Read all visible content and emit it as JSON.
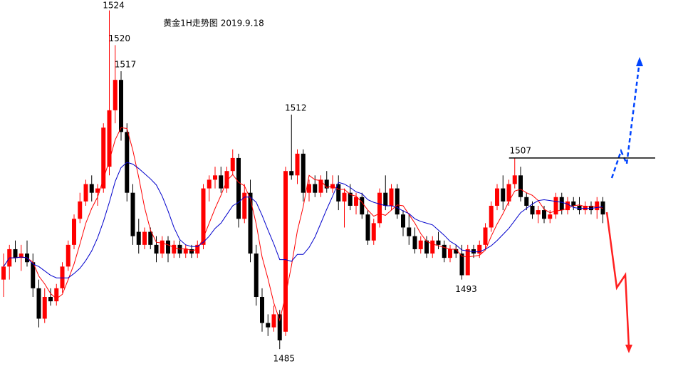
{
  "chart_data": {
    "type": "candlestick",
    "title": "黄金1H走势图 2019.9.18",
    "ylim": [
      1482.8,
      1525.2
    ],
    "up_color": "#ff0000",
    "down_color": "#000000",
    "open": [
      1493,
      1494.5,
      1496.5,
      1495.5,
      1496,
      1495,
      1492,
      1488.5,
      1491,
      1490.5,
      1492,
      1494.5,
      1497,
      1500,
      1502,
      1504,
      1503,
      1503.5,
      1506,
      1512.5,
      1516,
      1510,
      1503,
      1498.5,
      1497,
      1498.5,
      1497,
      1496,
      1497.5,
      1496,
      1497,
      1496,
      1496.5,
      1496,
      1497,
      1503.5,
      1504.5,
      1505,
      1503.5,
      1505.5,
      1507,
      1500,
      1503,
      1496,
      1491,
      1488,
      1487.5,
      1489,
      1487,
      1505.5,
      1505,
      1507.5,
      1503,
      1504,
      1503,
      1504.5,
      1503.5,
      1504,
      1502,
      1503,
      1501.5,
      1502.5,
      1500.5,
      1497.5,
      1499.5,
      1503,
      1501.5,
      1503.5,
      1500.5,
      1499,
      1498,
      1496.5,
      1497.5,
      1496,
      1497.5,
      1497,
      1495.5,
      1496.5,
      1496,
      1493.5,
      1496.5,
      1496,
      1497,
      1499,
      1501.5,
      1503.5,
      1502,
      1504,
      1505,
      1502.5,
      1501.5,
      1500.5,
      1501,
      1500,
      1500.5,
      1502.5,
      1501,
      1502,
      1501.5,
      1501,
      1501.5,
      1501,
      1502
    ],
    "high": [
      1496,
      1497,
      1497.5,
      1497,
      1497.5,
      1496,
      1493,
      1492,
      1492,
      1492.5,
      1495,
      1497.5,
      1500.5,
      1503,
      1504.5,
      1505,
      1504,
      1511,
      1524,
      1520,
      1517,
      1511,
      1504,
      1500,
      1499,
      1499,
      1498,
      1498,
      1498,
      1497.5,
      1497.5,
      1497,
      1497,
      1497.5,
      1504,
      1505,
      1506,
      1506,
      1506,
      1508,
      1507.5,
      1504,
      1504.5,
      1497,
      1492,
      1489,
      1490,
      1489.5,
      1506,
      1512,
      1508,
      1508,
      1504.5,
      1505,
      1505,
      1505.5,
      1505,
      1505,
      1503.5,
      1504,
      1503,
      1503,
      1501,
      1500,
      1503.5,
      1505,
      1504,
      1504,
      1501,
      1500.5,
      1499,
      1498,
      1498,
      1498,
      1498.5,
      1497.5,
      1497,
      1497,
      1497,
      1497,
      1497,
      1497.5,
      1499.5,
      1502,
      1504,
      1505,
      1504.5,
      1507,
      1506,
      1503,
      1502,
      1501.5,
      1501.5,
      1501,
      1503,
      1503,
      1502.5,
      1502.5,
      1502.5,
      1502,
      1502,
      1502.5,
      1502.5
    ],
    "low": [
      1491,
      1493,
      1495,
      1494,
      1494.5,
      1491,
      1487.5,
      1488,
      1490,
      1490,
      1491.5,
      1494,
      1496.5,
      1499.5,
      1501.5,
      1502,
      1501.5,
      1503,
      1505,
      1511,
      1509,
      1502,
      1497,
      1496,
      1496.5,
      1496.5,
      1495,
      1495.5,
      1495,
      1495.5,
      1495.5,
      1495.5,
      1495.5,
      1495.5,
      1496.5,
      1502,
      1503.5,
      1503,
      1503,
      1505,
      1499,
      1499.5,
      1495,
      1490,
      1487,
      1486.5,
      1487,
      1485,
      1486.5,
      1504.5,
      1504,
      1502,
      1502,
      1502.5,
      1502.5,
      1503,
      1503,
      1501,
      1499,
      1501,
      1500.5,
      1500,
      1497,
      1497,
      1499,
      1501,
      1501,
      1500,
      1498,
      1497,
      1496,
      1496,
      1495.5,
      1495.5,
      1496.5,
      1495,
      1495,
      1495.5,
      1493,
      1493.5,
      1495.5,
      1495.5,
      1496.5,
      1498.5,
      1501,
      1501,
      1501.5,
      1503.5,
      1502,
      1501,
      1500,
      1499.5,
      1499.5,
      1499.5,
      1500,
      1500.5,
      1500.5,
      1501,
      1500.5,
      1500.5,
      1500.5,
      1500,
      1499.5
    ],
    "close": [
      1494.5,
      1496.5,
      1495.5,
      1496,
      1495,
      1492,
      1488.5,
      1491,
      1490.5,
      1492,
      1494.5,
      1497,
      1500,
      1502,
      1504,
      1503,
      1503.5,
      1510.5,
      1512.5,
      1516,
      1510,
      1503,
      1498,
      1497,
      1498.5,
      1497,
      1496,
      1497.5,
      1496,
      1497,
      1496,
      1496.5,
      1496,
      1497,
      1503.5,
      1504.5,
      1505,
      1503.5,
      1505.5,
      1507,
      1500,
      1503,
      1496,
      1491,
      1488,
      1487.5,
      1489,
      1486,
      1505.5,
      1505,
      1507.5,
      1503,
      1504,
      1503,
      1504.5,
      1503.5,
      1504,
      1502,
      1503,
      1501.5,
      1502.5,
      1500.5,
      1497.5,
      1499.5,
      1503,
      1501.5,
      1503.5,
      1500.5,
      1499,
      1498,
      1496.5,
      1497.5,
      1496,
      1497.5,
      1497,
      1495.5,
      1496.5,
      1496,
      1493.5,
      1496.5,
      1496,
      1497,
      1499,
      1501.5,
      1503.5,
      1502,
      1504,
      1505,
      1502.5,
      1501.5,
      1500.5,
      1501,
      1500,
      1500.5,
      1502.5,
      1501,
      1502,
      1501.5,
      1501,
      1501.5,
      1501,
      1502,
      1500.5
    ],
    "lines": [
      {
        "color": "#ff0000",
        "values": [
          1494.5,
          1495.5,
          1495.5,
          1495.6,
          1495.5,
          1495,
          1493.4,
          1492.5,
          1491.4,
          1490.8,
          1491.3,
          1493,
          1494.8,
          1497.1,
          1499.5,
          1501.2,
          1502.5,
          1504.6,
          1506.7,
          1509.1,
          1510.5,
          1510.4,
          1507.9,
          1504.8,
          1501.3,
          1498.7,
          1497.3,
          1497.2,
          1497,
          1496.7,
          1496.5,
          1496.6,
          1496.3,
          1496.5,
          1497.8,
          1499.5,
          1501.2,
          1502.7,
          1504.4,
          1505.1,
          1504.2,
          1503.8,
          1502.3,
          1499.4,
          1495.6,
          1493.1,
          1490.3,
          1488.3,
          1491.2,
          1494.6,
          1498.6,
          1501.4,
          1505,
          1504.5,
          1504.4,
          1503.6,
          1503.8,
          1503.4,
          1503.4,
          1502.8,
          1502.6,
          1501.9,
          1501,
          1500.3,
          1500.6,
          1500.4,
          1501,
          1501.6,
          1501.5,
          1500.5,
          1499.5,
          1498.3,
          1497.4,
          1497.1,
          1496.9,
          1496.7,
          1496.5,
          1496.5,
          1495.7,
          1495.6,
          1495.7,
          1495.8,
          1496.4,
          1498,
          1499.4,
          1500.6,
          1502,
          1503.2,
          1503.4,
          1503,
          1502.7,
          1502.1,
          1501.1,
          1500.7,
          1500.9,
          1501,
          1501.2,
          1501.5,
          1501.6,
          1501.4,
          1501.4,
          1501.4,
          1501.2
        ]
      },
      {
        "color": "#0000cc",
        "values": [
          1494.5,
          1495.5,
          1495.5,
          1495.6,
          1495.5,
          1494.8,
          1494.5,
          1494,
          1493.5,
          1493.2,
          1493.2,
          1493.2,
          1493.7,
          1494.3,
          1495.2,
          1496.3,
          1497.8,
          1499.7,
          1501.9,
          1504.3,
          1505.9,
          1506.5,
          1506.3,
          1505.8,
          1505.2,
          1504.6,
          1503.9,
          1502.6,
          1500.9,
          1499,
          1497.6,
          1497,
          1496.8,
          1496.8,
          1497.3,
          1498,
          1498.9,
          1499.5,
          1500.5,
          1501.5,
          1501.9,
          1502.5,
          1502.5,
          1501.9,
          1500.4,
          1498.7,
          1497.1,
          1495.3,
          1495.3,
          1495.1,
          1495.9,
          1495.9,
          1496.7,
          1497.9,
          1499.5,
          1501.1,
          1502.6,
          1504.2,
          1504,
          1503.6,
          1503.1,
          1502.9,
          1502.2,
          1501.9,
          1501.7,
          1501.5,
          1501.5,
          1501.3,
          1500.9,
          1500.6,
          1500,
          1499.7,
          1499.5,
          1499.3,
          1498.7,
          1498.1,
          1497.4,
          1497,
          1496.4,
          1496.3,
          1496.2,
          1496.2,
          1496.5,
          1496.9,
          1497.5,
          1498.2,
          1498.9,
          1499.8,
          1500.7,
          1501.2,
          1501.7,
          1502.1,
          1502.2,
          1502.1,
          1502,
          1501.9,
          1501.7,
          1501.3,
          1501.2,
          1501.2,
          1501.2,
          1501.3,
          1501.4
        ]
      }
    ],
    "annotations": [
      {
        "value": 1524,
        "at": "high"
      },
      {
        "value": 1520,
        "at": "high"
      },
      {
        "value": 1517,
        "at": "high"
      },
      {
        "value": 1512,
        "at": "high"
      },
      {
        "value": 1485,
        "at": "low"
      },
      {
        "value": 1493,
        "at": "low"
      },
      {
        "value": 1507,
        "at": "high",
        "line": true
      }
    ]
  }
}
